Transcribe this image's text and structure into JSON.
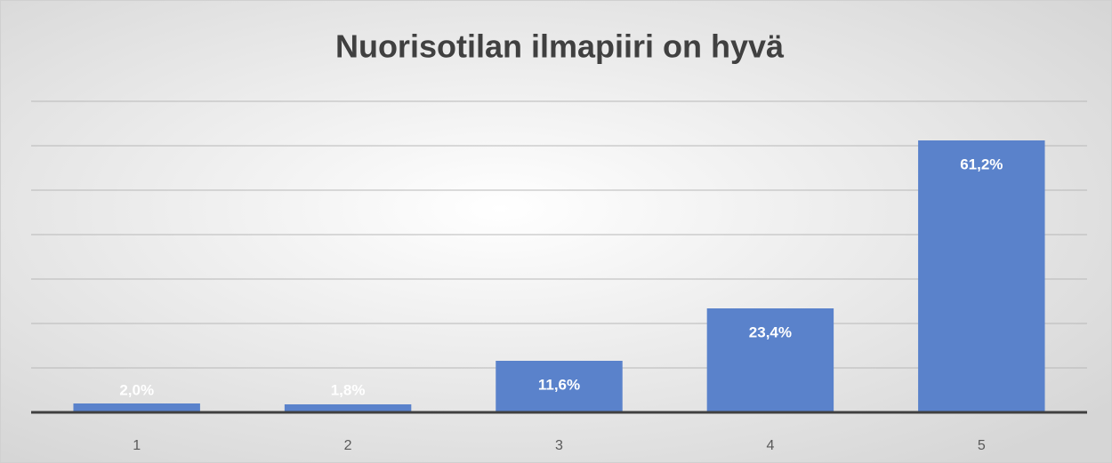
{
  "chart_data": {
    "type": "bar",
    "title": "Nuorisotilan ilmapiiri on hyvä",
    "categories": [
      "1",
      "2",
      "3",
      "4",
      "5"
    ],
    "values": [
      2.0,
      1.8,
      11.6,
      23.4,
      61.2
    ],
    "value_labels": [
      "2,0%",
      "1,8%",
      "11,6%",
      "23,4%",
      "61,2%"
    ],
    "color": "#5a82cb",
    "ylim": [
      0,
      70
    ],
    "yticks": [
      0,
      10,
      20,
      30,
      40,
      50,
      60,
      70
    ],
    "grid": true
  }
}
